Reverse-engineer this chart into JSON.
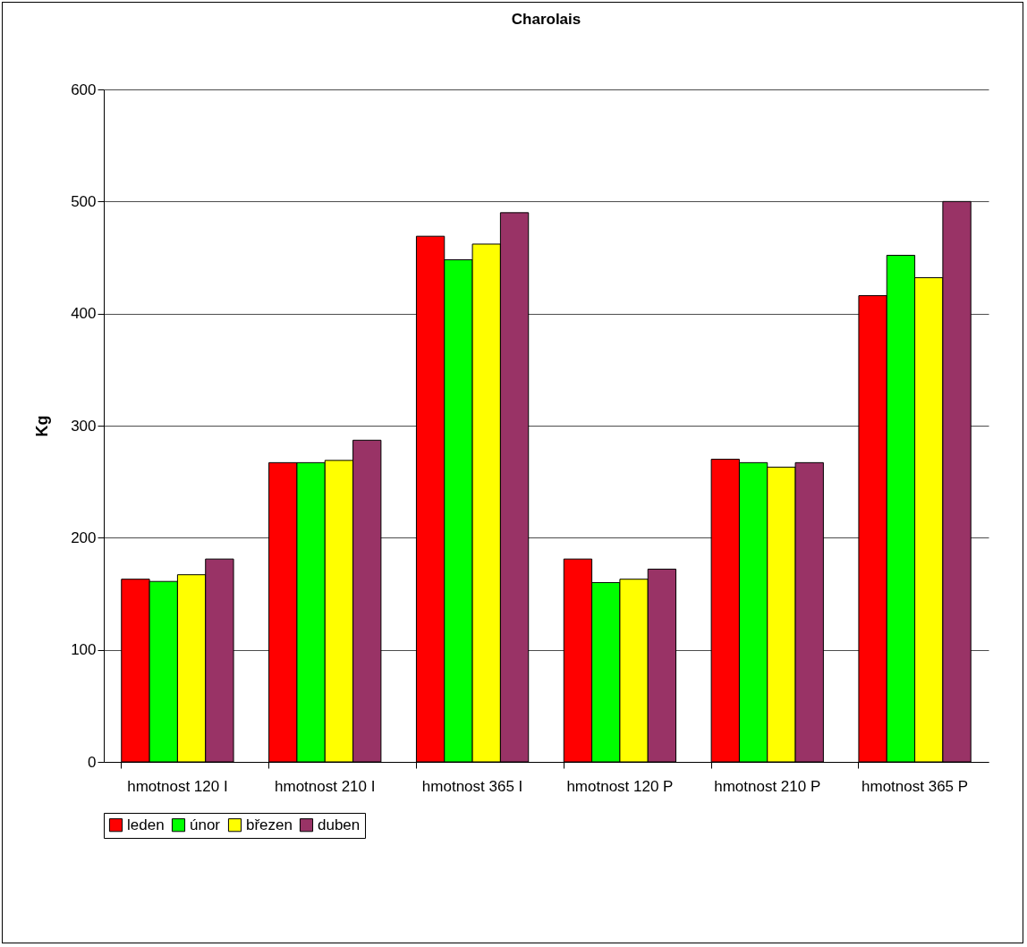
{
  "chart_data": {
    "type": "bar",
    "title": "Charolais",
    "ylabel": "Kg",
    "categories": [
      "hmotnost 120\nI",
      "hmotnost 210\nI",
      "hmotnost 365\nI",
      "hmotnost 120\nP",
      "hmotnost 210\nP",
      "hmotnost 365\nP"
    ],
    "series": [
      {
        "name": "leden",
        "color": "#ff0000",
        "values": [
          163,
          267,
          469,
          181,
          270,
          416
        ]
      },
      {
        "name": "únor",
        "color": "#00ff00",
        "values": [
          161,
          267,
          448,
          160,
          267,
          452
        ]
      },
      {
        "name": "březen",
        "color": "#ffff00",
        "values": [
          167,
          269,
          462,
          163,
          263,
          432
        ]
      },
      {
        "name": "duben",
        "color": "#993366",
        "values": [
          181,
          287,
          490,
          172,
          267,
          500
        ]
      }
    ],
    "ylim": [
      0,
      600
    ],
    "yticks": [
      0,
      100,
      200,
      300,
      400,
      500,
      600
    ],
    "grid": "y",
    "legend": "bottom"
  }
}
